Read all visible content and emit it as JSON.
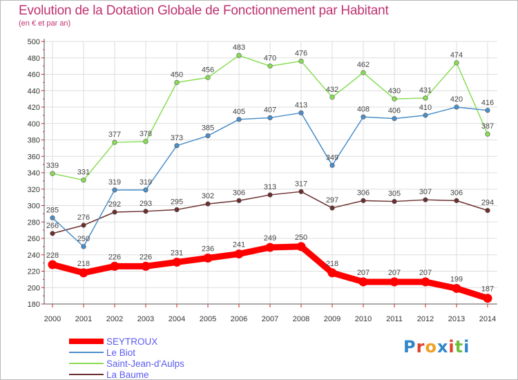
{
  "title": "Evolution de la Dotation Globale de Fonctionnement par Habitant",
  "subtitle": "(en € et par an)",
  "logo": {
    "text": "Proxiti",
    "letters": [
      "P",
      "r",
      "o",
      "x",
      "i",
      "t",
      "i"
    ],
    "colors": [
      "#2f86c8",
      "#e0402c",
      "#f0a020",
      "#2f86c8",
      "#e0402c",
      "#6cbf3a",
      "#2f86c8"
    ]
  },
  "chart_data": {
    "type": "line",
    "x": [
      "2000",
      "2001",
      "2002",
      "2003",
      "2004",
      "2005",
      "2006",
      "2007",
      "2008",
      "2009",
      "2010",
      "2011",
      "2012",
      "2013",
      "2014"
    ],
    "ylim": [
      180,
      500
    ],
    "yticks": [
      180,
      200,
      220,
      240,
      260,
      280,
      300,
      320,
      340,
      360,
      380,
      400,
      420,
      440,
      460,
      480,
      500
    ],
    "grid": true,
    "legend_position": "bottom-left",
    "series": [
      {
        "name": "SEYTROUX",
        "color": "#ff0000",
        "values": [
          228,
          218,
          226,
          226,
          231,
          236,
          241,
          249,
          250,
          218,
          207,
          207,
          207,
          199,
          187
        ]
      },
      {
        "name": "Le Biot",
        "color": "#4a8ec9",
        "values": [
          285,
          250,
          319,
          319,
          373,
          385,
          405,
          407,
          413,
          349,
          408,
          406,
          410,
          420,
          416
        ]
      },
      {
        "name": "Saint-Jean-d'Aulps",
        "color": "#88dd55",
        "values": [
          339,
          331,
          377,
          378,
          450,
          456,
          483,
          470,
          476,
          432,
          462,
          430,
          431,
          474,
          387
        ]
      },
      {
        "name": "La Baume",
        "color": "#6b2e2e",
        "values": [
          266,
          276,
          292,
          293,
          295,
          302,
          306,
          313,
          317,
          297,
          306,
          305,
          307,
          306,
          294
        ]
      }
    ]
  }
}
